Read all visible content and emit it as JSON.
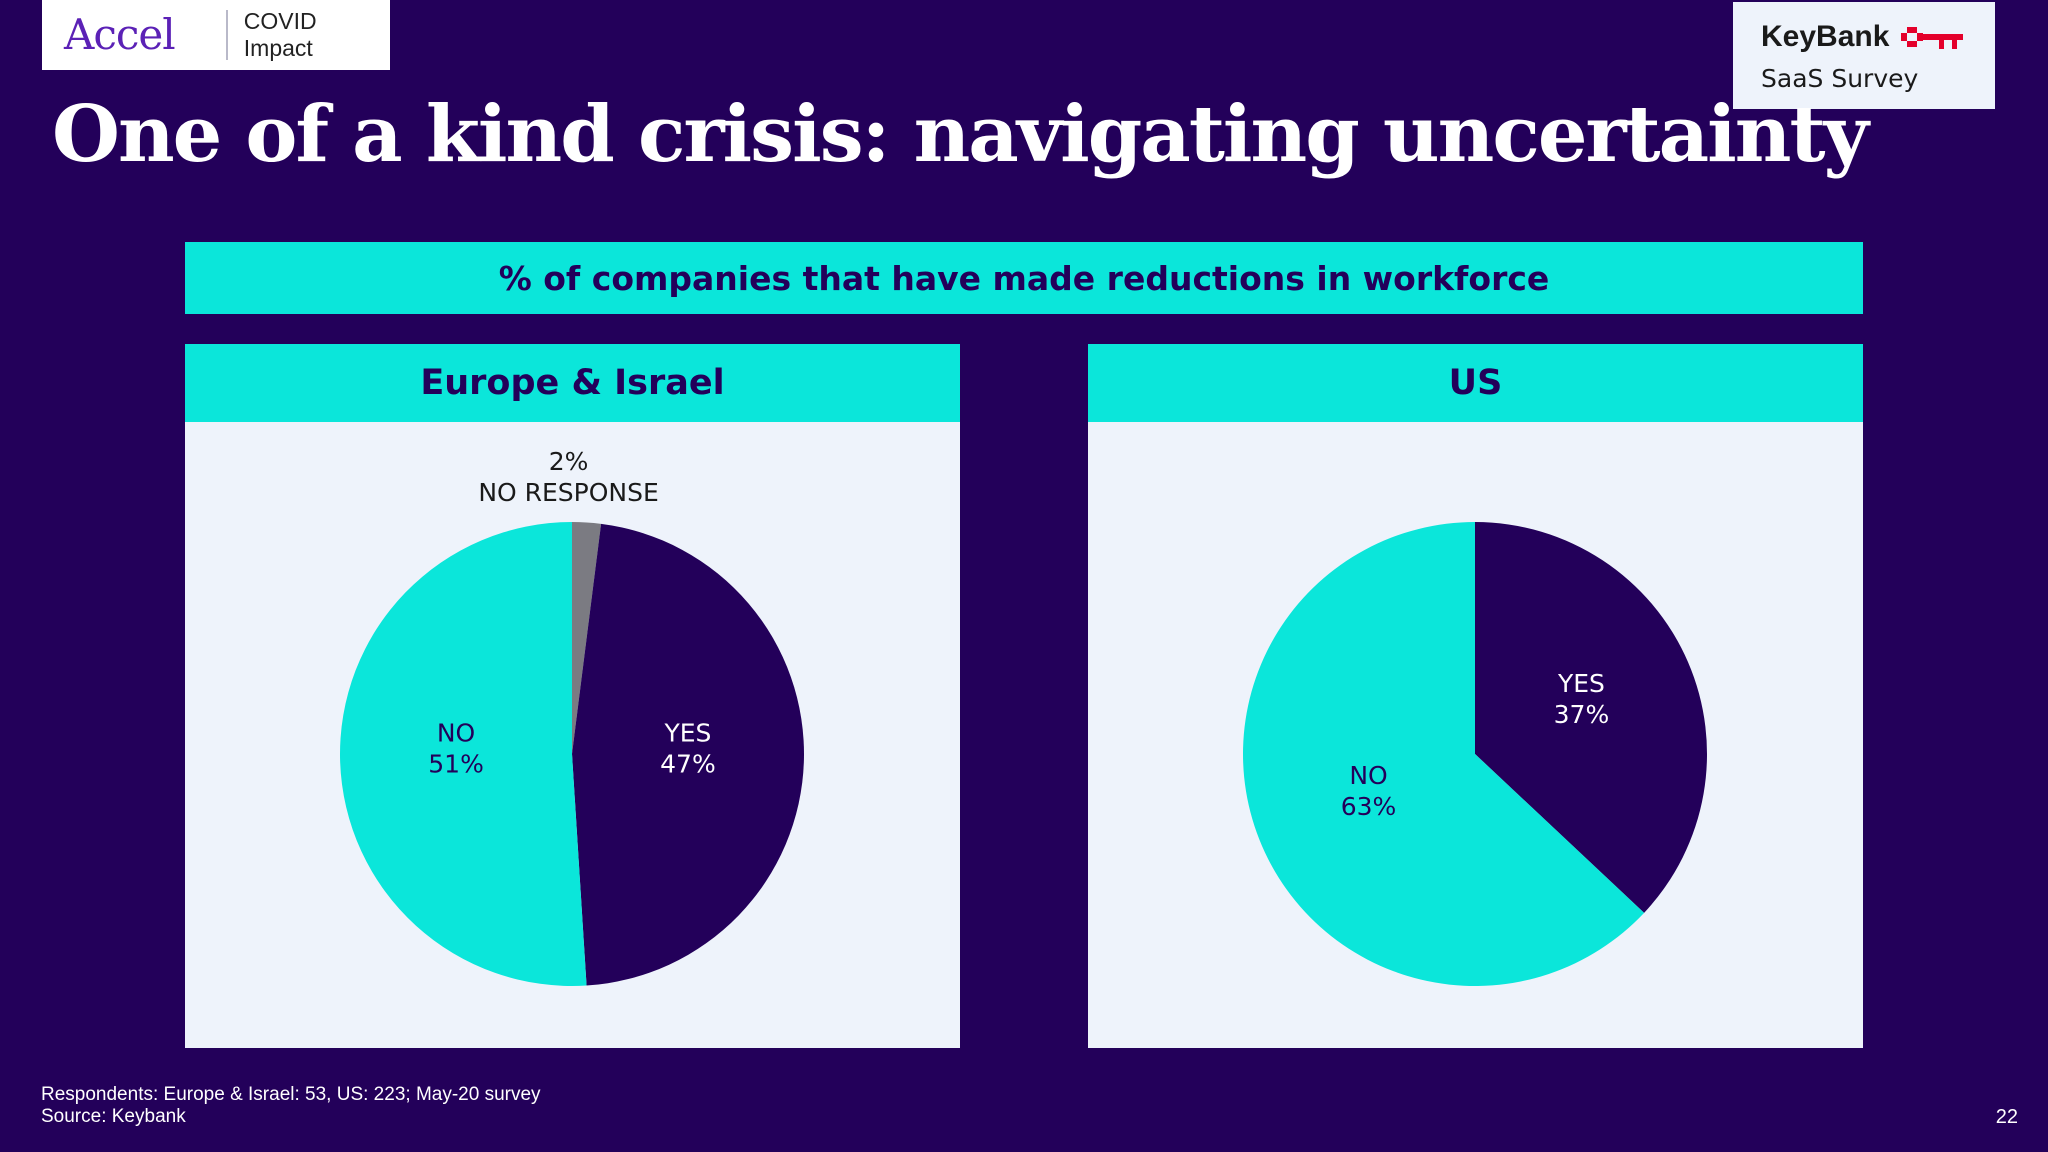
{
  "brand": {
    "logo_text": "Accel",
    "tag": "COVID Impact"
  },
  "partner": {
    "name": "KeyBank",
    "subtitle": "SaaS Survey",
    "icon": "key-icon"
  },
  "title": "One of a kind crisis: navigating uncertainty",
  "colors": {
    "background": "#23005a",
    "accent": "#0be6da",
    "panel": "#eef3fb",
    "no_response": "#7b7b82"
  },
  "chart_data": [
    {
      "type": "pie",
      "title": "% of companies that have made reductions in workforce",
      "subtitle": "Europe & Israel",
      "slices": [
        {
          "label": "NO RESPONSE",
          "value": 2,
          "display": "2%",
          "color": "#7b7b82"
        },
        {
          "label": "YES",
          "value": 47,
          "display": "47%",
          "color": "#23005a"
        },
        {
          "label": "NO",
          "value": 51,
          "display": "51%",
          "color": "#0be6da"
        }
      ]
    },
    {
      "type": "pie",
      "title": "% of companies that have made reductions in workforce",
      "subtitle": "US",
      "slices": [
        {
          "label": "YES",
          "value": 37,
          "display": "37%",
          "color": "#23005a"
        },
        {
          "label": "NO",
          "value": 63,
          "display": "63%",
          "color": "#0be6da"
        }
      ]
    }
  ],
  "footnote": {
    "respondents": "Respondents: Europe & Israel: 53, US: 223; May-20 survey",
    "source": "Source: Keybank"
  },
  "page_number": "22"
}
